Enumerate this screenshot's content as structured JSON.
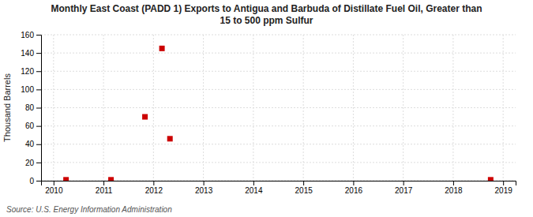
{
  "chart_data": {
    "type": "scatter",
    "title": "Monthly East Coast (PADD 1) Exports to Antigua and Barbuda of Distillate Fuel Oil, Greater than\n15 to 500 ppm Sulfur",
    "ylabel": "Thousand Barrels",
    "source": "Source: U.S. Energy Information Administration",
    "x": [
      2010.25,
      2011.15,
      2011.83,
      2012.17,
      2012.33,
      2018.75
    ],
    "values": [
      1,
      1,
      70,
      145,
      46,
      1
    ],
    "color": "#cc0000",
    "marker": "square",
    "xlim": [
      2009.75,
      2019.25
    ],
    "ylim": [
      0,
      160
    ],
    "xticks": [
      2010,
      2011,
      2012,
      2013,
      2014,
      2015,
      2016,
      2017,
      2018,
      2019
    ],
    "yticks": [
      0,
      20,
      40,
      60,
      80,
      100,
      120,
      140,
      160
    ],
    "grid": true
  }
}
